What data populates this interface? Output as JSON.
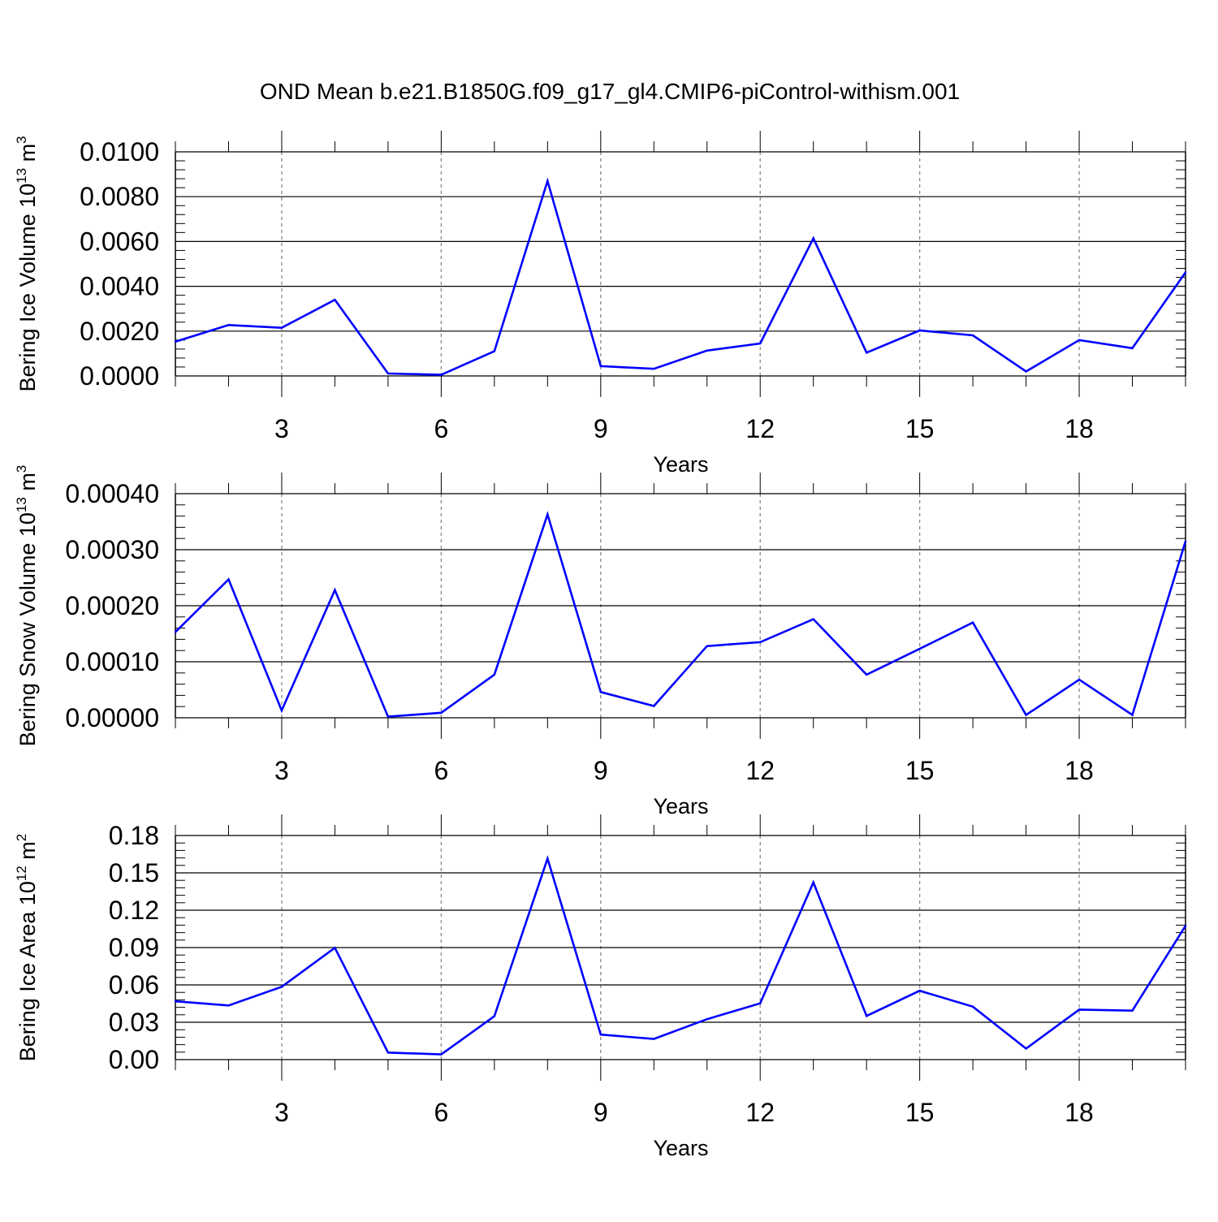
{
  "title": "OND Mean b.e21.B1850G.f09_g17_gl4.CMIP6-piControl-withism.001",
  "line_color": "#0000ff",
  "chart_data": [
    {
      "type": "line",
      "ylabel": "Bering Ice Volume 10",
      "ylabel_sup": "13",
      "ylabel_unit": "m",
      "ylabel_unit_sup": "3",
      "xlabel": "Years",
      "xlim": [
        1,
        20
      ],
      "ylim": [
        0,
        0.01
      ],
      "xticks": [
        3,
        6,
        9,
        12,
        15,
        18
      ],
      "xtick_labels": [
        "3",
        "6",
        "9",
        "12",
        "15",
        "18"
      ],
      "yticks": [
        0,
        0.002,
        0.004,
        0.006,
        0.008,
        0.01
      ],
      "ytick_labels": [
        "0.0000",
        "0.0020",
        "0.0040",
        "0.0060",
        "0.0080",
        "0.0100"
      ],
      "grid": "vertical dashed at major x ticks",
      "x": [
        1,
        2,
        3,
        4,
        5,
        6,
        7,
        8,
        9,
        10,
        11,
        12,
        13,
        14,
        15,
        16,
        17,
        18,
        19,
        20
      ],
      "y": [
        0.00153,
        0.00227,
        0.00215,
        0.0034,
        0.00011,
        5e-05,
        0.0011,
        0.0087,
        0.00044,
        0.00032,
        0.00113,
        0.00145,
        0.00614,
        0.00104,
        0.00203,
        0.00181,
        0.0002,
        0.0016,
        0.00124,
        0.00462
      ]
    },
    {
      "type": "line",
      "ylabel": "Bering Snow Volume 10",
      "ylabel_sup": "13",
      "ylabel_unit": "m",
      "ylabel_unit_sup": "3",
      "xlabel": "Years",
      "xlim": [
        1,
        20
      ],
      "ylim": [
        0,
        0.0004
      ],
      "xticks": [
        3,
        6,
        9,
        12,
        15,
        18
      ],
      "xtick_labels": [
        "3",
        "6",
        "9",
        "12",
        "15",
        "18"
      ],
      "yticks": [
        0,
        0.0001,
        0.0002,
        0.0003,
        0.0004
      ],
      "ytick_labels": [
        "0.00000",
        "0.00010",
        "0.00020",
        "0.00030",
        "0.00040"
      ],
      "grid": "vertical dashed at major x ticks",
      "x": [
        1,
        2,
        3,
        4,
        5,
        6,
        7,
        8,
        9,
        10,
        11,
        12,
        13,
        14,
        15,
        16,
        17,
        18,
        19,
        20
      ],
      "y": [
        0.000153,
        0.000247,
        1.3e-05,
        0.000228,
        2e-06,
        9e-06,
        7.7e-05,
        0.000363,
        4.6e-05,
        2.1e-05,
        0.000128,
        0.000135,
        0.000176,
        7.7e-05,
        0.000123,
        0.00017,
        5e-06,
        6.8e-05,
        5e-06,
        0.000315
      ]
    },
    {
      "type": "line",
      "ylabel": "Bering Ice Area 10",
      "ylabel_sup": "12",
      "ylabel_unit": "m",
      "ylabel_unit_sup": "2",
      "xlabel": "Years",
      "xlim": [
        1,
        20
      ],
      "ylim": [
        0,
        0.18
      ],
      "xticks": [
        3,
        6,
        9,
        12,
        15,
        18
      ],
      "xtick_labels": [
        "3",
        "6",
        "9",
        "12",
        "15",
        "18"
      ],
      "yticks": [
        0,
        0.03,
        0.06,
        0.09,
        0.12,
        0.15,
        0.18
      ],
      "ytick_labels": [
        "0.00",
        "0.03",
        "0.06",
        "0.09",
        "0.12",
        "0.15",
        "0.18"
      ],
      "grid": "vertical dashed at major x ticks",
      "x": [
        1,
        2,
        3,
        4,
        5,
        6,
        7,
        8,
        9,
        10,
        11,
        12,
        13,
        14,
        15,
        16,
        17,
        18,
        19,
        20
      ],
      "y": [
        0.0468,
        0.0435,
        0.0585,
        0.0898,
        0.0057,
        0.0042,
        0.0348,
        0.1615,
        0.0201,
        0.0166,
        0.0325,
        0.0452,
        0.1423,
        0.0351,
        0.0553,
        0.0425,
        0.0089,
        0.0402,
        0.0393,
        0.1075
      ]
    }
  ]
}
